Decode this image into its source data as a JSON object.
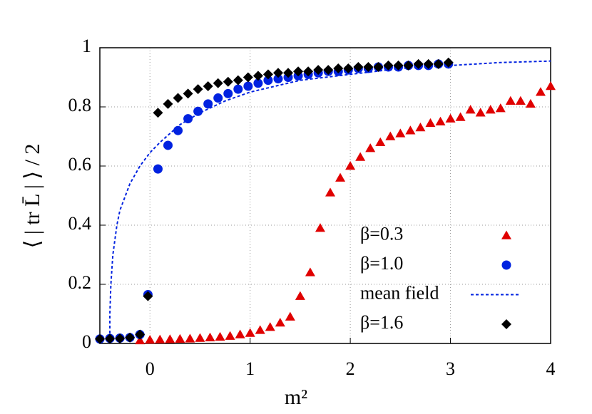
{
  "chart_data": {
    "type": "scatter",
    "xlabel": "m²",
    "ylabel": "⟨ | tr L̄ | ⟩ / 2",
    "xlim": [
      -0.5,
      4
    ],
    "ylim": [
      0,
      1
    ],
    "xticks": [
      0,
      1,
      2,
      3,
      4
    ],
    "yticks": [
      0,
      0.2,
      0.4,
      0.6,
      0.8,
      1
    ],
    "grid": true,
    "legend": "lower right",
    "series": [
      {
        "name": "β=0.3",
        "kind": "scatter",
        "marker": "triangle",
        "color": "#e00000",
        "x": [
          -0.1,
          0,
          0.1,
          0.2,
          0.3,
          0.4,
          0.5,
          0.6,
          0.7,
          0.8,
          0.9,
          1.0,
          1.1,
          1.2,
          1.3,
          1.4,
          1.5,
          1.6,
          1.7,
          1.8,
          1.9,
          2.0,
          2.1,
          2.2,
          2.3,
          2.4,
          2.5,
          2.6,
          2.7,
          2.8,
          2.9,
          3.0,
          3.1,
          3.2,
          3.3,
          3.4,
          3.5,
          3.6,
          3.7,
          3.8,
          3.9,
          4.0
        ],
        "values": [
          0.01,
          0.012,
          0.013,
          0.014,
          0.015,
          0.016,
          0.018,
          0.02,
          0.022,
          0.025,
          0.03,
          0.035,
          0.045,
          0.055,
          0.07,
          0.09,
          0.16,
          0.24,
          0.39,
          0.51,
          0.56,
          0.6,
          0.63,
          0.66,
          0.68,
          0.7,
          0.71,
          0.72,
          0.73,
          0.745,
          0.75,
          0.76,
          0.765,
          0.79,
          0.78,
          0.79,
          0.795,
          0.82,
          0.82,
          0.81,
          0.85,
          0.87
        ]
      },
      {
        "name": "β=1.0",
        "kind": "scatter",
        "marker": "circle",
        "color": "#0022e0",
        "x": [
          -0.5,
          -0.4,
          -0.3,
          -0.2,
          -0.1,
          -0.02,
          0.08,
          0.18,
          0.28,
          0.38,
          0.48,
          0.58,
          0.68,
          0.78,
          0.88,
          0.98,
          1.08,
          1.18,
          1.28,
          1.38,
          1.48,
          1.58,
          1.68,
          1.78,
          1.88,
          1.98,
          2.08,
          2.18,
          2.28,
          2.38,
          2.48,
          2.58,
          2.68,
          2.78,
          2.88,
          2.98
        ],
        "values": [
          0.015,
          0.017,
          0.018,
          0.02,
          0.03,
          0.165,
          0.59,
          0.67,
          0.72,
          0.76,
          0.785,
          0.81,
          0.83,
          0.845,
          0.86,
          0.87,
          0.88,
          0.89,
          0.895,
          0.9,
          0.905,
          0.91,
          0.915,
          0.92,
          0.92,
          0.925,
          0.93,
          0.93,
          0.935,
          0.935,
          0.935,
          0.94,
          0.94,
          0.94,
          0.945,
          0.945
        ]
      },
      {
        "name": "mean field",
        "kind": "line",
        "color": "#0022e0",
        "x": [
          -0.4,
          -0.4,
          -0.39,
          -0.37,
          -0.33,
          -0.3,
          -0.2,
          -0.1,
          0,
          0.1,
          0.2,
          0.3,
          0.5,
          0.75,
          1,
          1.5,
          2,
          2.5,
          3,
          3.5,
          4
        ],
        "values": [
          0,
          0.1,
          0.2,
          0.3,
          0.4,
          0.45,
          0.54,
          0.6,
          0.645,
          0.68,
          0.71,
          0.74,
          0.78,
          0.82,
          0.85,
          0.89,
          0.91,
          0.93,
          0.94,
          0.95,
          0.955
        ]
      },
      {
        "name": "β=1.6",
        "kind": "scatter",
        "marker": "diamond",
        "color": "#000000",
        "x": [
          -0.5,
          -0.4,
          -0.3,
          -0.2,
          -0.1,
          -0.02,
          0.08,
          0.18,
          0.28,
          0.38,
          0.48,
          0.58,
          0.68,
          0.78,
          0.88,
          0.98,
          1.08,
          1.18,
          1.28,
          1.38,
          1.48,
          1.58,
          1.68,
          1.78,
          1.88,
          1.98,
          2.08,
          2.18,
          2.28,
          2.38,
          2.48,
          2.58,
          2.68,
          2.78,
          2.88,
          2.98
        ],
        "values": [
          0.015,
          0.016,
          0.017,
          0.02,
          0.03,
          0.16,
          0.78,
          0.81,
          0.83,
          0.845,
          0.86,
          0.87,
          0.88,
          0.885,
          0.89,
          0.9,
          0.905,
          0.91,
          0.915,
          0.915,
          0.92,
          0.92,
          0.925,
          0.925,
          0.93,
          0.93,
          0.935,
          0.935,
          0.935,
          0.94,
          0.94,
          0.94,
          0.945,
          0.945,
          0.945,
          0.95
        ]
      }
    ]
  }
}
